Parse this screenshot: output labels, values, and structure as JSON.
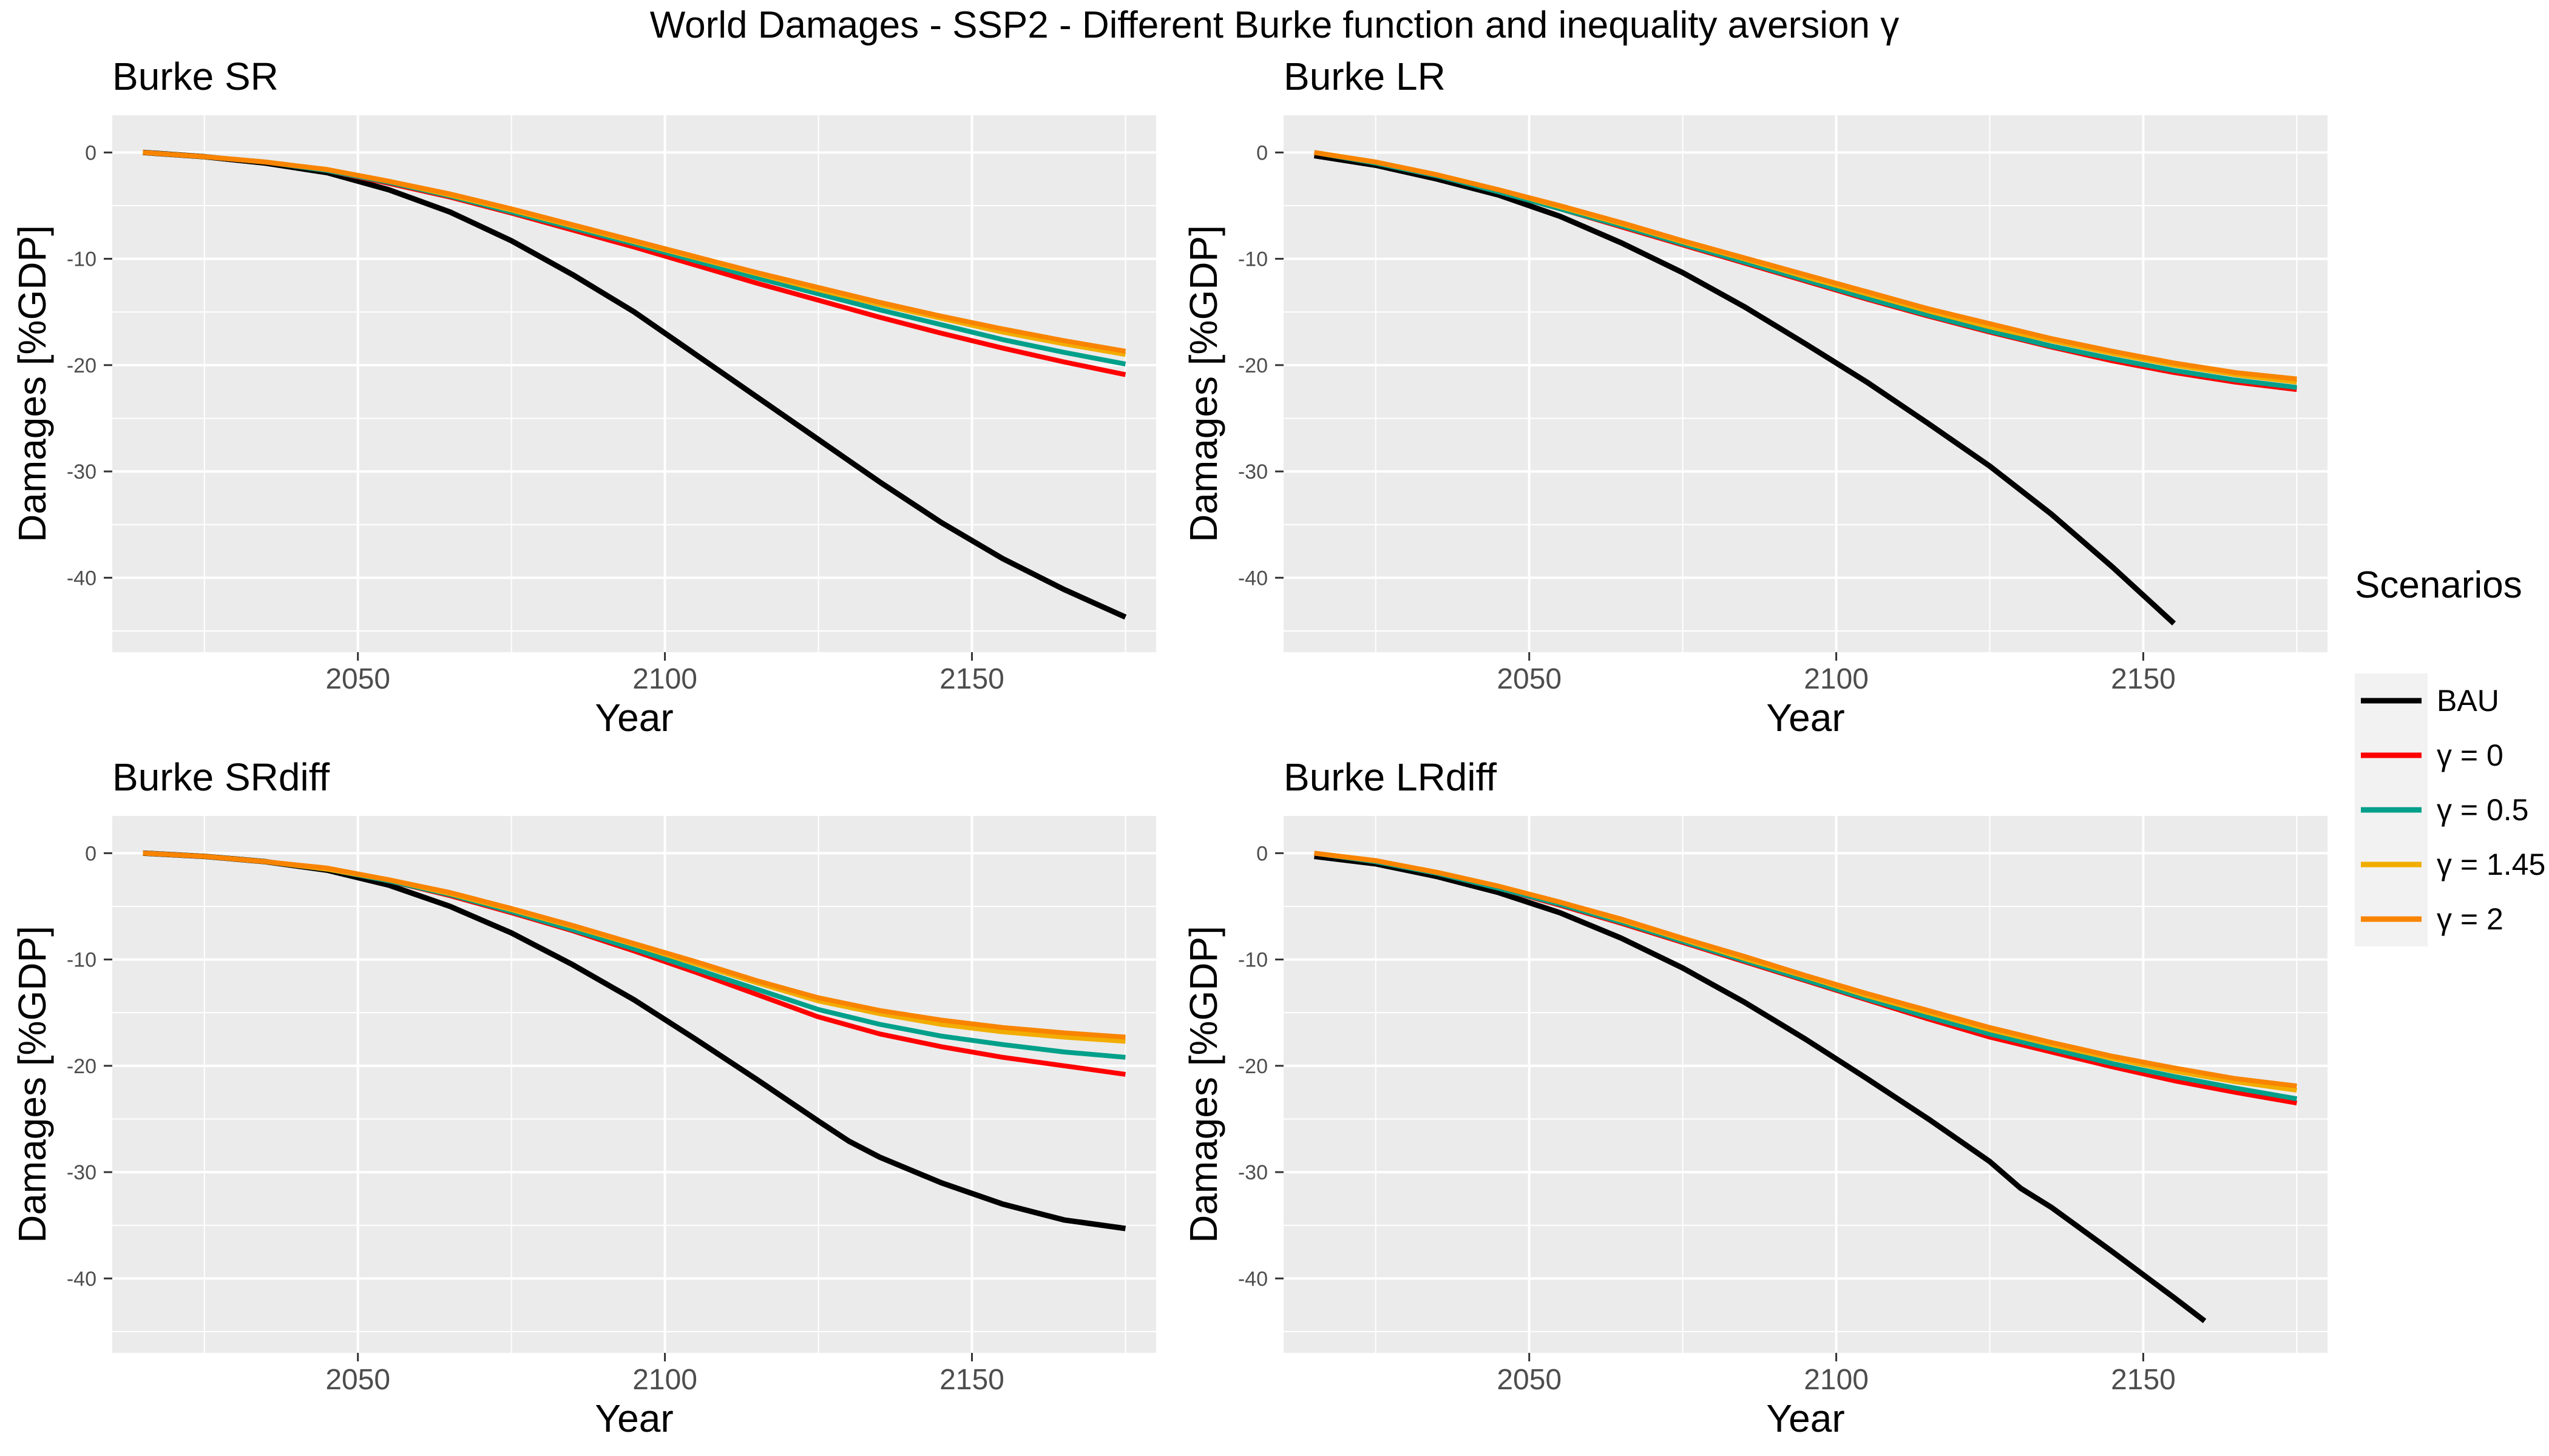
{
  "title": "World Damages - SSP2 - Different Burke function and inequality aversion γ",
  "legend": {
    "title": "Scenarios",
    "entries": [
      {
        "label": "BAU",
        "color": "#000000"
      },
      {
        "label": "γ = 0",
        "color": "#ff0000"
      },
      {
        "label": "γ = 0.5",
        "color": "#00a08a"
      },
      {
        "label": "γ = 1.45",
        "color": "#f2ad00"
      },
      {
        "label": "γ = 2",
        "color": "#f98400"
      }
    ]
  },
  "chart_data": [
    {
      "type": "line",
      "title": "Burke SR",
      "xlabel": "Year",
      "ylabel": "Damages [%GDP]",
      "xlim": [
        2010,
        2180
      ],
      "ylim": [
        -47,
        3.5
      ],
      "xticks": [
        2050,
        2100,
        2150
      ],
      "yticks": [
        0,
        -10,
        -20,
        -30,
        -40
      ],
      "grid": true,
      "series": [
        {
          "name": "BAU",
          "x": [
            2015,
            2025,
            2035,
            2045,
            2055,
            2065,
            2075,
            2085,
            2095,
            2105,
            2115,
            2125,
            2135,
            2145,
            2155,
            2165,
            2175
          ],
          "y": [
            0,
            -0.4,
            -1.0,
            -1.9,
            -3.5,
            -5.6,
            -8.3,
            -11.5,
            -15.0,
            -19.0,
            -23.0,
            -27.0,
            -31.0,
            -34.8,
            -38.2,
            -41.1,
            -43.7
          ]
        },
        {
          "name": "γ = 0",
          "x": [
            2015,
            2025,
            2035,
            2045,
            2055,
            2065,
            2075,
            2085,
            2095,
            2105,
            2115,
            2125,
            2135,
            2145,
            2155,
            2165,
            2175
          ],
          "y": [
            0,
            -0.4,
            -0.9,
            -1.7,
            -2.9,
            -4.2,
            -5.7,
            -7.3,
            -8.9,
            -10.6,
            -12.3,
            -13.9,
            -15.5,
            -17.0,
            -18.4,
            -19.7,
            -20.9
          ]
        },
        {
          "name": "γ = 0.5",
          "x": [
            2015,
            2025,
            2035,
            2045,
            2055,
            2065,
            2075,
            2085,
            2095,
            2105,
            2115,
            2125,
            2135,
            2145,
            2155,
            2165,
            2175
          ],
          "y": [
            0,
            -0.4,
            -0.9,
            -1.7,
            -2.8,
            -4.1,
            -5.6,
            -7.1,
            -8.6,
            -10.2,
            -11.8,
            -13.3,
            -14.8,
            -16.2,
            -17.6,
            -18.8,
            -19.9
          ]
        },
        {
          "name": "γ = 1.45",
          "x": [
            2015,
            2025,
            2035,
            2045,
            2055,
            2065,
            2075,
            2085,
            2095,
            2105,
            2115,
            2125,
            2135,
            2145,
            2155,
            2165,
            2175
          ],
          "y": [
            0,
            -0.4,
            -0.9,
            -1.6,
            -2.7,
            -4.0,
            -5.4,
            -6.9,
            -8.4,
            -9.9,
            -11.4,
            -12.9,
            -14.3,
            -15.6,
            -16.9,
            -18.0,
            -19.0
          ]
        },
        {
          "name": "γ = 2",
          "x": [
            2015,
            2025,
            2035,
            2045,
            2055,
            2065,
            2075,
            2085,
            2095,
            2105,
            2115,
            2125,
            2135,
            2145,
            2155,
            2165,
            2175
          ],
          "y": [
            0,
            -0.4,
            -0.9,
            -1.6,
            -2.7,
            -3.9,
            -5.3,
            -6.8,
            -8.3,
            -9.8,
            -11.3,
            -12.7,
            -14.1,
            -15.4,
            -16.6,
            -17.7,
            -18.7
          ]
        }
      ]
    },
    {
      "type": "line",
      "title": "Burke LR",
      "xlabel": "Year",
      "ylabel": "Damages [%GDP]",
      "xlim": [
        2010,
        2180
      ],
      "ylim": [
        -47,
        3.5
      ],
      "xticks": [
        2050,
        2100,
        2150
      ],
      "yticks": [
        0,
        -10,
        -20,
        -30,
        -40
      ],
      "grid": true,
      "series": [
        {
          "name": "BAU",
          "x": [
            2015,
            2025,
            2035,
            2045,
            2055,
            2065,
            2075,
            2085,
            2095,
            2105,
            2115,
            2125,
            2135,
            2145,
            2155
          ],
          "y": [
            -0.3,
            -1.2,
            -2.5,
            -4.0,
            -6.0,
            -8.5,
            -11.3,
            -14.5,
            -18.0,
            -21.6,
            -25.5,
            -29.5,
            -34.0,
            -39.0,
            -44.3
          ]
        },
        {
          "name": "γ = 0",
          "x": [
            2015,
            2025,
            2035,
            2045,
            2055,
            2065,
            2075,
            2085,
            2095,
            2105,
            2115,
            2125,
            2135,
            2145,
            2155,
            2165,
            2175
          ],
          "y": [
            0,
            -1.0,
            -2.2,
            -3.7,
            -5.3,
            -7.0,
            -8.7,
            -10.4,
            -12.1,
            -13.8,
            -15.4,
            -16.9,
            -18.3,
            -19.6,
            -20.7,
            -21.6,
            -22.3
          ]
        },
        {
          "name": "γ = 0.5",
          "x": [
            2015,
            2025,
            2035,
            2045,
            2055,
            2065,
            2075,
            2085,
            2095,
            2105,
            2115,
            2125,
            2135,
            2145,
            2155,
            2165,
            2175
          ],
          "y": [
            0,
            -1.0,
            -2.2,
            -3.7,
            -5.3,
            -6.9,
            -8.6,
            -10.3,
            -12.0,
            -13.7,
            -15.3,
            -16.8,
            -18.2,
            -19.4,
            -20.5,
            -21.4,
            -22.1
          ]
        },
        {
          "name": "γ = 1.45",
          "x": [
            2015,
            2025,
            2035,
            2045,
            2055,
            2065,
            2075,
            2085,
            2095,
            2105,
            2115,
            2125,
            2135,
            2145,
            2155,
            2165,
            2175
          ],
          "y": [
            0,
            -0.9,
            -2.1,
            -3.5,
            -5.1,
            -6.7,
            -8.4,
            -10.0,
            -11.7,
            -13.3,
            -14.9,
            -16.4,
            -17.7,
            -18.9,
            -20.0,
            -20.9,
            -21.6
          ]
        },
        {
          "name": "γ = 2",
          "x": [
            2015,
            2025,
            2035,
            2045,
            2055,
            2065,
            2075,
            2085,
            2095,
            2105,
            2115,
            2125,
            2135,
            2145,
            2155,
            2165,
            2175
          ],
          "y": [
            0,
            -0.9,
            -2.1,
            -3.5,
            -5.0,
            -6.6,
            -8.3,
            -9.9,
            -11.5,
            -13.1,
            -14.7,
            -16.1,
            -17.5,
            -18.7,
            -19.8,
            -20.7,
            -21.3
          ]
        }
      ]
    },
    {
      "type": "line",
      "title": "Burke SRdiff",
      "xlabel": "Year",
      "ylabel": "Damages [%GDP]",
      "xlim": [
        2010,
        2180
      ],
      "ylim": [
        -47,
        3.5
      ],
      "xticks": [
        2050,
        2100,
        2150
      ],
      "yticks": [
        0,
        -10,
        -20,
        -30,
        -40
      ],
      "grid": true,
      "series": [
        {
          "name": "BAU",
          "x": [
            2015,
            2025,
            2035,
            2045,
            2055,
            2065,
            2075,
            2085,
            2095,
            2105,
            2115,
            2125,
            2130,
            2135,
            2145,
            2155,
            2165,
            2175
          ],
          "y": [
            0,
            -0.3,
            -0.8,
            -1.6,
            -3.0,
            -5.0,
            -7.5,
            -10.5,
            -13.8,
            -17.5,
            -21.3,
            -25.2,
            -27.1,
            -28.6,
            -31.0,
            -33.0,
            -34.5,
            -35.3
          ]
        },
        {
          "name": "γ = 0",
          "x": [
            2015,
            2025,
            2035,
            2045,
            2055,
            2065,
            2075,
            2085,
            2095,
            2105,
            2115,
            2125,
            2135,
            2145,
            2155,
            2165,
            2175
          ],
          "y": [
            0,
            -0.3,
            -0.8,
            -1.5,
            -2.6,
            -4.0,
            -5.6,
            -7.3,
            -9.2,
            -11.2,
            -13.3,
            -15.4,
            -17.0,
            -18.2,
            -19.2,
            -20.0,
            -20.8
          ]
        },
        {
          "name": "γ = 0.5",
          "x": [
            2015,
            2025,
            2035,
            2045,
            2055,
            2065,
            2075,
            2085,
            2095,
            2105,
            2115,
            2125,
            2135,
            2145,
            2155,
            2165,
            2175
          ],
          "y": [
            0,
            -0.3,
            -0.8,
            -1.5,
            -2.6,
            -3.9,
            -5.5,
            -7.2,
            -9.0,
            -10.9,
            -12.8,
            -14.7,
            -16.1,
            -17.2,
            -18.0,
            -18.7,
            -19.2
          ]
        },
        {
          "name": "γ = 1.45",
          "x": [
            2015,
            2025,
            2035,
            2045,
            2055,
            2065,
            2075,
            2085,
            2095,
            2105,
            2115,
            2125,
            2135,
            2145,
            2155,
            2165,
            2175
          ],
          "y": [
            0,
            -0.3,
            -0.8,
            -1.5,
            -2.5,
            -3.8,
            -5.3,
            -6.9,
            -8.6,
            -10.4,
            -12.2,
            -13.9,
            -15.1,
            -16.1,
            -16.8,
            -17.3,
            -17.7
          ]
        },
        {
          "name": "γ = 2",
          "x": [
            2015,
            2025,
            2035,
            2045,
            2055,
            2065,
            2075,
            2085,
            2095,
            2105,
            2115,
            2125,
            2135,
            2145,
            2155,
            2165,
            2175
          ],
          "y": [
            0,
            -0.3,
            -0.8,
            -1.4,
            -2.5,
            -3.7,
            -5.2,
            -6.8,
            -8.5,
            -10.2,
            -12.0,
            -13.6,
            -14.8,
            -15.7,
            -16.4,
            -16.9,
            -17.3
          ]
        }
      ]
    },
    {
      "type": "line",
      "title": "Burke LRdiff",
      "xlabel": "Year",
      "ylabel": "Damages [%GDP]",
      "xlim": [
        2010,
        2180
      ],
      "ylim": [
        -47,
        3.5
      ],
      "xticks": [
        2050,
        2100,
        2150
      ],
      "yticks": [
        0,
        -10,
        -20,
        -30,
        -40
      ],
      "grid": true,
      "series": [
        {
          "name": "BAU",
          "x": [
            2015,
            2025,
            2035,
            2045,
            2055,
            2065,
            2075,
            2085,
            2095,
            2105,
            2115,
            2125,
            2130,
            2135,
            2145,
            2155,
            2160
          ],
          "y": [
            -0.3,
            -1.0,
            -2.2,
            -3.7,
            -5.6,
            -8.0,
            -10.8,
            -14.0,
            -17.5,
            -21.2,
            -25.0,
            -29.0,
            -31.5,
            -33.3,
            -37.5,
            -41.8,
            -44.0
          ]
        },
        {
          "name": "γ = 0",
          "x": [
            2015,
            2025,
            2035,
            2045,
            2055,
            2065,
            2075,
            2085,
            2095,
            2105,
            2115,
            2125,
            2135,
            2145,
            2155,
            2165,
            2175
          ],
          "y": [
            0,
            -0.8,
            -1.9,
            -3.3,
            -4.9,
            -6.6,
            -8.4,
            -10.2,
            -12.0,
            -13.8,
            -15.6,
            -17.3,
            -18.7,
            -20.1,
            -21.4,
            -22.5,
            -23.5
          ]
        },
        {
          "name": "γ = 0.5",
          "x": [
            2015,
            2025,
            2035,
            2045,
            2055,
            2065,
            2075,
            2085,
            2095,
            2105,
            2115,
            2125,
            2135,
            2145,
            2155,
            2165,
            2175
          ],
          "y": [
            0,
            -0.8,
            -1.9,
            -3.3,
            -4.8,
            -6.5,
            -8.3,
            -10.1,
            -11.9,
            -13.7,
            -15.4,
            -17.0,
            -18.4,
            -19.8,
            -21.0,
            -22.1,
            -23.1
          ]
        },
        {
          "name": "γ = 1.45",
          "x": [
            2015,
            2025,
            2035,
            2045,
            2055,
            2065,
            2075,
            2085,
            2095,
            2105,
            2115,
            2125,
            2135,
            2145,
            2155,
            2165,
            2175
          ],
          "y": [
            0,
            -0.7,
            -1.8,
            -3.1,
            -4.6,
            -6.3,
            -8.1,
            -9.9,
            -11.6,
            -13.4,
            -15.0,
            -16.6,
            -18.0,
            -19.3,
            -20.5,
            -21.5,
            -22.3
          ]
        },
        {
          "name": "γ = 2",
          "x": [
            2015,
            2025,
            2035,
            2045,
            2055,
            2065,
            2075,
            2085,
            2095,
            2105,
            2115,
            2125,
            2135,
            2145,
            2155,
            2165,
            2175
          ],
          "y": [
            0,
            -0.7,
            -1.8,
            -3.1,
            -4.6,
            -6.2,
            -8.0,
            -9.7,
            -11.5,
            -13.2,
            -14.8,
            -16.4,
            -17.8,
            -19.1,
            -20.2,
            -21.2,
            -21.9
          ]
        }
      ]
    }
  ]
}
